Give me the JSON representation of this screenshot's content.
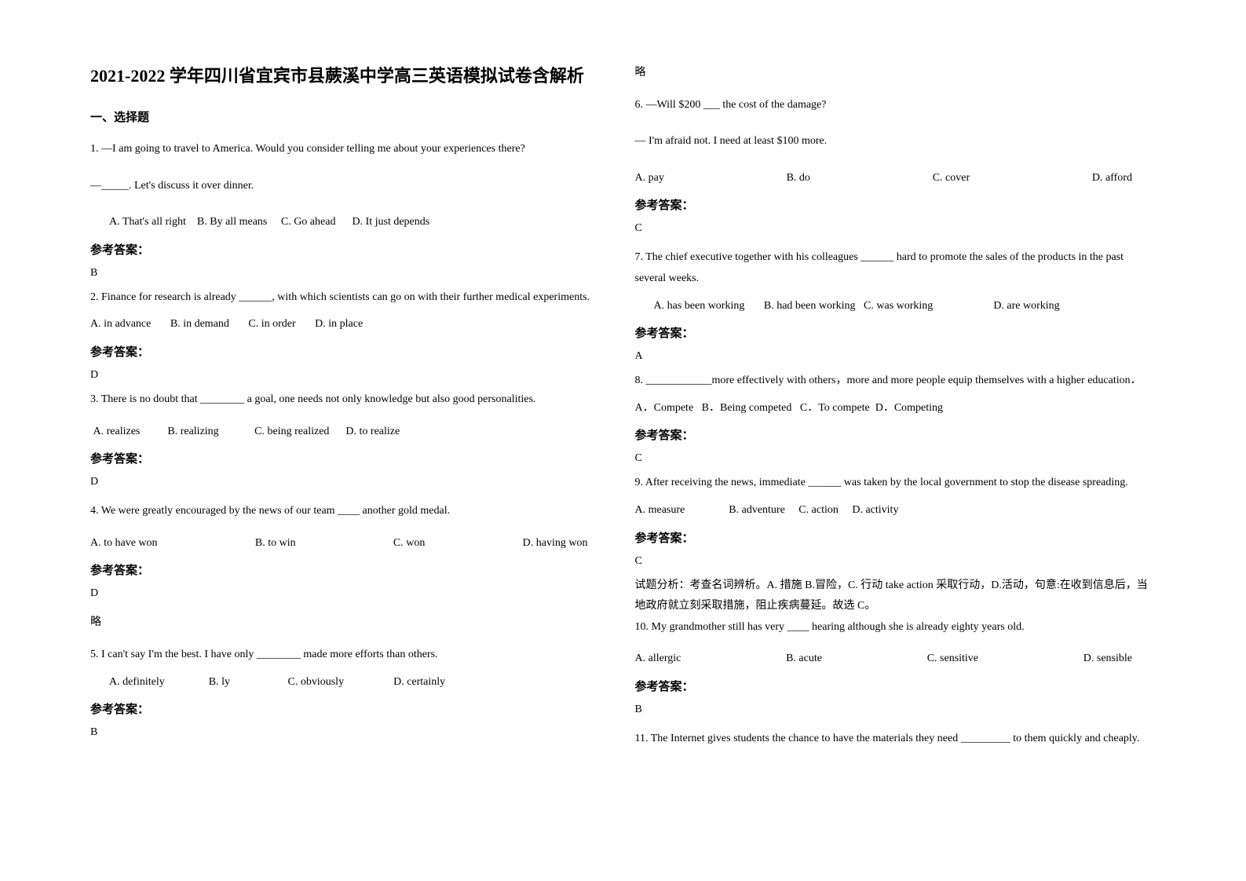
{
  "title": "2021-2022 学年四川省宜宾市县蕨溪中学高三英语模拟试卷含解析",
  "section1": "一、选择题",
  "q1": {
    "prompt1": "1. —I am going to travel to America. Would you consider telling me about your experiences there?",
    "prompt2": "—_____. Let's discuss it over dinner.",
    "optA": "A. That's all right",
    "optB": "B. By all means",
    "optC": "C. Go ahead",
    "optD": "D. It just depends",
    "answerLabel": "参考答案：",
    "answer": "B"
  },
  "q2": {
    "prompt": "2. Finance for research is already ______, with which scientists can go on with their further medical experiments.",
    "optA": "A. in advance",
    "optB": "B. in demand",
    "optC": "C. in order",
    "optD": "D. in place",
    "answerLabel": "参考答案：",
    "answer": "D"
  },
  "q3": {
    "prompt": "3. There is no doubt that ________ a goal, one needs not only knowledge but also good personalities.",
    "optA": "A. realizes",
    "optB": "B. realizing",
    "optC": "C. being realized",
    "optD": "D. to realize",
    "answerLabel": "参考答案：",
    "answer": "D"
  },
  "q4": {
    "prompt": "4. We were greatly encouraged by the news of our team ____ another gold medal.",
    "optA": "A. to have won",
    "optB": "B. to win",
    "optC": "C. won",
    "optD": "D. having won",
    "answerLabel": "参考答案：",
    "answer": "D",
    "note": "略"
  },
  "q5": {
    "prompt": "5. I can't say I'm the best. I have only ________ made more efforts than others.",
    "optA": "A. definitely",
    "optB": "B. ly",
    "optC": "C. obviously",
    "optD": "D. certainly",
    "answerLabel": "参考答案：",
    "answer": "B",
    "note": "略"
  },
  "q6": {
    "prompt1": "6. —Will $200 ___ the cost of the damage?",
    "prompt2": "— I'm afraid not. I need at least $100 more.",
    "optA": "A. pay",
    "optB": "B. do",
    "optC": "C. cover",
    "optD": "D. afford",
    "answerLabel": "参考答案：",
    "answer": "C"
  },
  "q7": {
    "prompt": "7. The chief executive together with his colleagues ______ hard to promote the sales of the products in the past several weeks.",
    "optA": "A. has been working",
    "optB": "B. had been working",
    "optC": "C. was working",
    "optD": "D. are working",
    "answerLabel": "参考答案：",
    "answer": "A"
  },
  "q8": {
    "prompt": "8. ____________more effectively with others，more and more people equip themselves with a higher education．",
    "optA": "A．Compete",
    "optB": "B．Being competed",
    "optC": "C．To compete",
    "optD": "D．Competing",
    "answerLabel": "参考答案：",
    "answer": "C"
  },
  "q9": {
    "prompt": "9. After receiving the news, immediate ______ was taken by the local government to stop the disease spreading.",
    "optA": "A. measure",
    "optB": "B. adventure",
    "optC": "C. action",
    "optD": "D. activity",
    "answerLabel": "参考答案：",
    "answer": "C",
    "explanation": "试题分析：考查名词辨析。A. 措施 B.冒险，C. 行动 take action 采取行动，D.活动，句意:在收到信息后，当地政府就立刻采取措施，阻止疾病蔓延。故选 C。"
  },
  "q10": {
    "prompt": "10. My grandmother still has very ____ hearing although she is already eighty years old.",
    "optA": "A. allergic",
    "optB": "B. acute",
    "optC": "C. sensitive",
    "optD": "D. sensible",
    "answerLabel": "参考答案：",
    "answer": "B"
  },
  "q11": {
    "prompt": "11. The Internet gives students the chance to have the materials they need _________ to them quickly and cheaply."
  }
}
